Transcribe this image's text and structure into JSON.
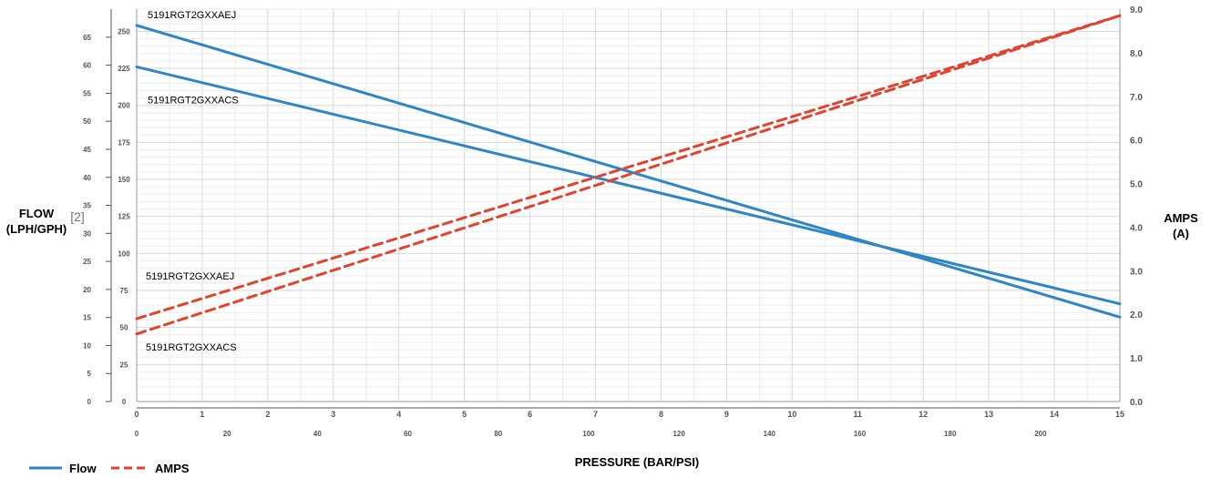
{
  "chart_data": {
    "type": "line",
    "y_left_label": [
      "FLOW",
      "(LPH/GPH)"
    ],
    "y_left_ref": "[2]",
    "y_right_label": [
      "AMPS",
      "(A)"
    ],
    "x_label": "PRESSURE (BAR/PSI)",
    "x_bar_ticks": [
      0,
      1,
      2,
      3,
      4,
      5,
      6,
      7,
      8,
      9,
      10,
      11,
      12,
      13,
      14,
      15
    ],
    "x_psi_ticks": [
      0,
      20,
      40,
      60,
      80,
      100,
      120,
      140,
      160,
      180,
      200
    ],
    "x_bar_range": [
      0,
      15
    ],
    "x_psi_per_bar": 14.5038,
    "y_lph_ticks": [
      0,
      25,
      50,
      75,
      100,
      125,
      150,
      175,
      200,
      225,
      250
    ],
    "y_gph_ticks": [
      0,
      5,
      10,
      15,
      20,
      25,
      30,
      35,
      40,
      45,
      50,
      55,
      60,
      65
    ],
    "y_lph_range": [
      0,
      265
    ],
    "y_gph_per_lph": 0.2642,
    "y_amps_ticks": [
      "0.0",
      "1.0",
      "2.0",
      "3.0",
      "4.0",
      "5.0",
      "6.0",
      "7.0",
      "8.0",
      "9.0"
    ],
    "y_amps_range": [
      0,
      9
    ],
    "series": [
      {
        "name": "5191RGT2GXXAEJ",
        "kind": "flow",
        "color": "#2f86c5",
        "x": [
          0,
          15
        ],
        "y": [
          254,
          57
        ]
      },
      {
        "name": "5191RGT2GXXACS",
        "kind": "flow",
        "color": "#2f86c5",
        "x": [
          0,
          15
        ],
        "y": [
          226,
          66
        ]
      },
      {
        "name": "5191RGT2GXXAEJ",
        "kind": "amps",
        "color": "#e2432f",
        "x": [
          0,
          15
        ],
        "y": [
          1.9,
          8.85
        ]
      },
      {
        "name": "5191RGT2GXXACS",
        "kind": "amps",
        "color": "#e2432f",
        "x": [
          0,
          15
        ],
        "y": [
          1.55,
          8.85
        ]
      }
    ],
    "curve_labels": [
      {
        "text": "5191RGT2GXXAEJ",
        "series": 0
      },
      {
        "text": "5191RGT2GXXACS",
        "series": 1
      },
      {
        "text": "5191RGT2GXXAEJ",
        "series": 2
      },
      {
        "text": "5191RGT2GXXACS",
        "series": 3
      }
    ],
    "legend": [
      {
        "label": "Flow",
        "style": "solid",
        "color": "#2f86c5"
      },
      {
        "label": "AMPS",
        "style": "dashed",
        "color": "#e2432f"
      }
    ],
    "grid": true
  }
}
